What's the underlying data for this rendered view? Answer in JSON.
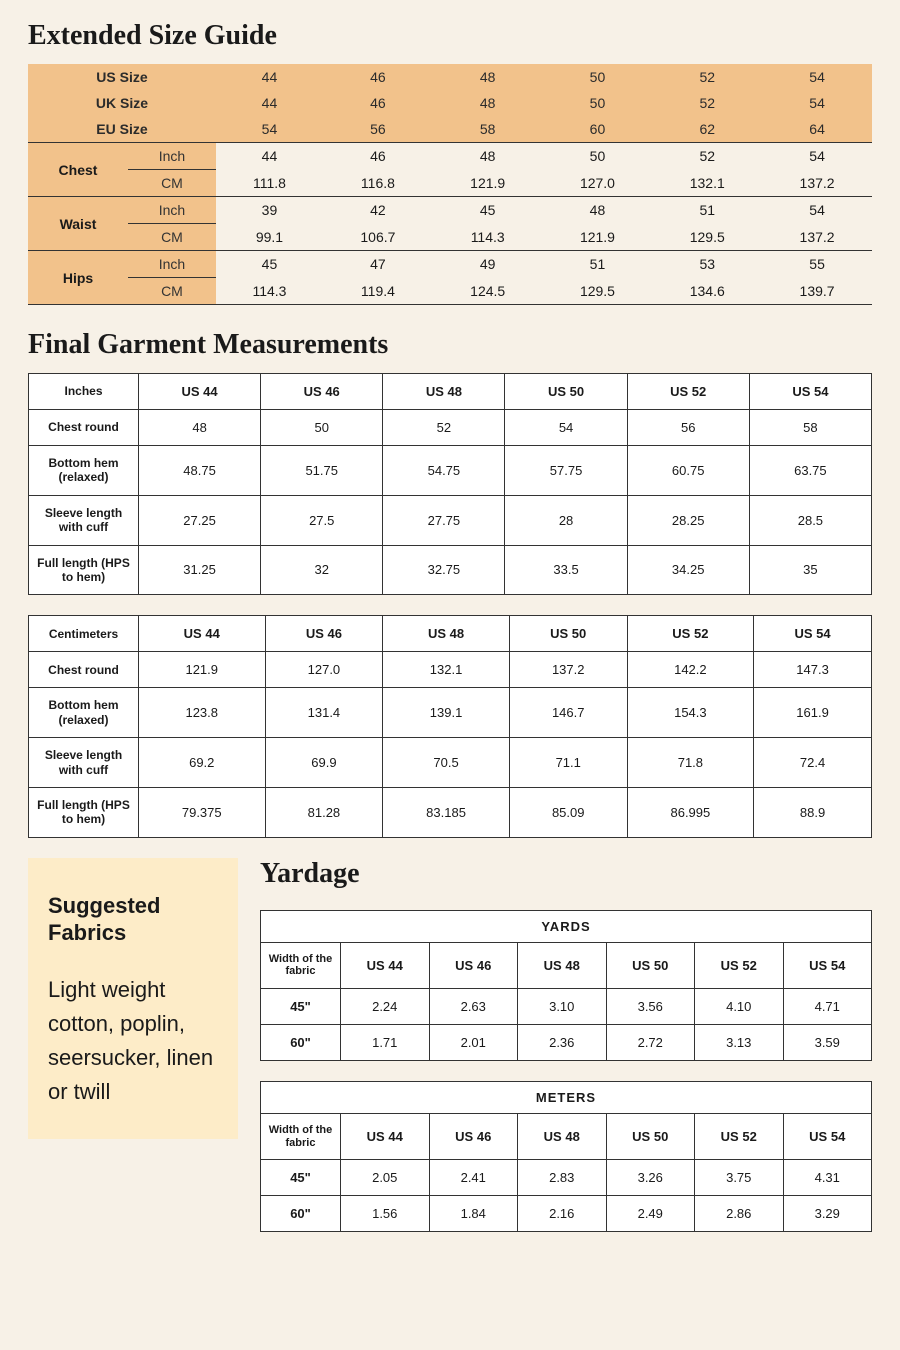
{
  "titles": {
    "sizeGuide": "Extended Size Guide",
    "garment": "Final Garment Measurements",
    "yardage": "Yardage",
    "fabricsHeading": "Suggested Fabrics",
    "fabricsBody": "Light weight cotton, poplin, seersucker, linen or twill"
  },
  "colors": {
    "pageBg": "#f7f1e7",
    "accentBg": "#f2c28b",
    "fabricBg": "#fdecc8",
    "tableBg": "#ffffff",
    "border": "#333333"
  },
  "sizeGuide": {
    "headerRows": [
      {
        "label": "US Size",
        "values": [
          "44",
          "46",
          "48",
          "50",
          "52",
          "54"
        ]
      },
      {
        "label": "UK Size",
        "values": [
          "44",
          "46",
          "48",
          "50",
          "52",
          "54"
        ]
      },
      {
        "label": "EU Size",
        "values": [
          "54",
          "56",
          "58",
          "60",
          "62",
          "64"
        ]
      }
    ],
    "bodyRows": [
      {
        "label": "Chest",
        "inch": [
          "44",
          "46",
          "48",
          "50",
          "52",
          "54"
        ],
        "cm": [
          "111.8",
          "116.8",
          "121.9",
          "127.0",
          "132.1",
          "137.2"
        ]
      },
      {
        "label": "Waist",
        "inch": [
          "39",
          "42",
          "45",
          "48",
          "51",
          "54"
        ],
        "cm": [
          "99.1",
          "106.7",
          "114.3",
          "121.9",
          "129.5",
          "137.2"
        ]
      },
      {
        "label": "Hips",
        "inch": [
          "45",
          "47",
          "49",
          "51",
          "53",
          "55"
        ],
        "cm": [
          "114.3",
          "119.4",
          "124.5",
          "129.5",
          "134.6",
          "139.7"
        ]
      }
    ],
    "unitLabels": {
      "inch": "Inch",
      "cm": "CM"
    }
  },
  "garment": {
    "sizeHeaders": [
      "US 44",
      "US 46",
      "US 48",
      "US  50",
      "US 52",
      "US 54"
    ],
    "tables": [
      {
        "unitHeader": "Inches",
        "rows": [
          {
            "label": "Chest round",
            "values": [
              "48",
              "50",
              "52",
              "54",
              "56",
              "58"
            ]
          },
          {
            "label": "Bottom hem (relaxed)",
            "values": [
              "48.75",
              "51.75",
              "54.75",
              "57.75",
              "60.75",
              "63.75"
            ]
          },
          {
            "label": "Sleeve length with cuff",
            "values": [
              "27.25",
              "27.5",
              "27.75",
              "28",
              "28.25",
              "28.5"
            ]
          },
          {
            "label": "Full length (HPS to hem)",
            "values": [
              "31.25",
              "32",
              "32.75",
              "33.5",
              "34.25",
              "35"
            ]
          }
        ]
      },
      {
        "unitHeader": "Centimeters",
        "rows": [
          {
            "label": "Chest round",
            "values": [
              "121.9",
              "127.0",
              "132.1",
              "137.2",
              "142.2",
              "147.3"
            ]
          },
          {
            "label": "Bottom hem (relaxed)",
            "values": [
              "123.8",
              "131.4",
              "139.1",
              "146.7",
              "154.3",
              "161.9"
            ]
          },
          {
            "label": "Sleeve length with cuff",
            "values": [
              "69.2",
              "69.9",
              "70.5",
              "71.1",
              "71.8",
              "72.4"
            ]
          },
          {
            "label": "Full length (HPS to hem)",
            "values": [
              "79.375",
              "81.28",
              "83.185",
              "85.09",
              "86.995",
              "88.9"
            ]
          }
        ]
      }
    ]
  },
  "yardage": {
    "sizeHeaders": [
      "US 44",
      "US 46",
      "US 48",
      "US  50",
      "US 52",
      "US 54"
    ],
    "widthLabel": "Width of the fabric",
    "tables": [
      {
        "unitHeader": "YARDS",
        "rows": [
          {
            "label": "45\"",
            "values": [
              "2.24",
              "2.63",
              "3.10",
              "3.56",
              "4.10",
              "4.71"
            ]
          },
          {
            "label": "60\"",
            "values": [
              "1.71",
              "2.01",
              "2.36",
              "2.72",
              "3.13",
              "3.59"
            ]
          }
        ]
      },
      {
        "unitHeader": "METERS",
        "rows": [
          {
            "label": "45\"",
            "values": [
              "2.05",
              "2.41",
              "2.83",
              "3.26",
              "3.75",
              "4.31"
            ]
          },
          {
            "label": "60\"",
            "values": [
              "1.56",
              "1.84",
              "2.16",
              "2.49",
              "2.86",
              "3.29"
            ]
          }
        ]
      }
    ]
  }
}
